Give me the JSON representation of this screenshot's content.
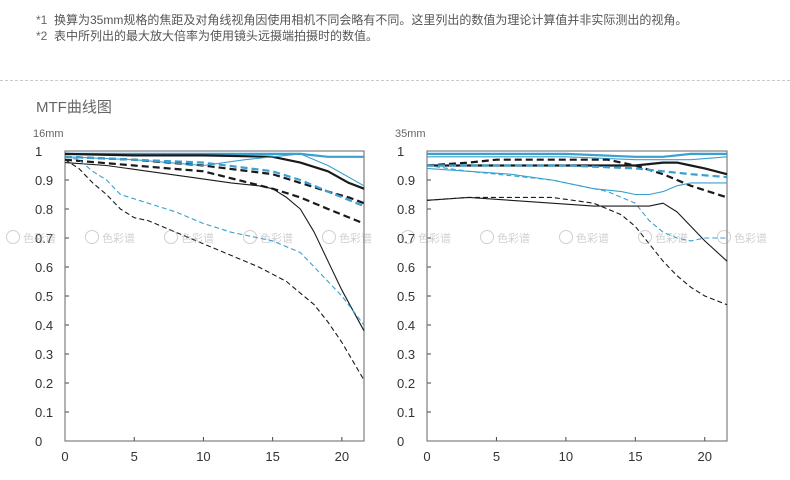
{
  "notes": [
    {
      "mark": "*1",
      "text": "换算为35mm规格的焦距及对角线视角因使用相机不同会略有不同。这里列出的数值为理论计算值并非实际测出的视角。"
    },
    {
      "mark": "*2",
      "text": "表中所列出的最大放大倍率为使用镜头远摄端拍摄时的数值。"
    }
  ],
  "section_title": "MTF曲线图",
  "watermark_text": "色彩谱",
  "colors": {
    "black": "#1a1a1a",
    "blue": "#3aa0d0",
    "axis": "#444444"
  },
  "chart_data": [
    {
      "type": "line",
      "title": "16mm",
      "xlim": [
        0,
        21.6
      ],
      "ylim": [
        0,
        1
      ],
      "xticks": [
        "0",
        "5",
        "10",
        "15",
        "20"
      ],
      "yticks": [
        "0",
        "0.1",
        "0.2",
        "0.3",
        "0.4",
        "0.5",
        "0.6",
        "0.7",
        "0.8",
        "0.9",
        "1"
      ],
      "series": [
        {
          "color": "blue",
          "dash": false,
          "width": 2,
          "x": [
            0,
            5,
            10,
            15,
            17,
            19,
            21.6
          ],
          "y": [
            0.99,
            0.99,
            0.99,
            0.99,
            0.99,
            0.98,
            0.98
          ]
        },
        {
          "color": "black",
          "dash": false,
          "width": 2,
          "x": [
            0,
            5,
            10,
            15,
            17,
            19,
            20.5,
            21.6
          ],
          "y": [
            0.99,
            0.985,
            0.985,
            0.98,
            0.96,
            0.93,
            0.89,
            0.87
          ]
        },
        {
          "color": "black",
          "dash": true,
          "width": 2,
          "x": [
            0,
            5,
            10,
            15,
            17,
            19,
            20.5,
            21.6
          ],
          "y": [
            0.98,
            0.97,
            0.95,
            0.92,
            0.89,
            0.86,
            0.84,
            0.82
          ]
        },
        {
          "color": "blue",
          "dash": false,
          "width": 1,
          "x": [
            0,
            5,
            10,
            13,
            15,
            17,
            19,
            21.6
          ],
          "y": [
            0.98,
            0.97,
            0.95,
            0.97,
            0.98,
            0.99,
            0.95,
            0.88
          ]
        },
        {
          "color": "blue",
          "dash": true,
          "width": 2,
          "x": [
            0,
            5,
            10,
            15,
            17,
            19,
            21.6
          ],
          "y": [
            0.98,
            0.97,
            0.96,
            0.93,
            0.9,
            0.86,
            0.81
          ]
        },
        {
          "color": "black",
          "dash": true,
          "width": 2,
          "x": [
            0,
            5,
            10,
            15,
            17,
            19,
            21.6
          ],
          "y": [
            0.97,
            0.95,
            0.93,
            0.87,
            0.84,
            0.8,
            0.75
          ]
        },
        {
          "color": "black",
          "dash": false,
          "width": 1,
          "x": [
            0,
            3,
            6,
            9,
            12,
            14,
            15,
            16,
            17,
            18,
            19,
            20,
            21.6
          ],
          "y": [
            0.96,
            0.95,
            0.93,
            0.91,
            0.89,
            0.88,
            0.87,
            0.84,
            0.8,
            0.72,
            0.62,
            0.52,
            0.38
          ]
        },
        {
          "color": "blue",
          "dash": true,
          "width": 1,
          "x": [
            0,
            1,
            2,
            3,
            4,
            6,
            8,
            10,
            12,
            14,
            15,
            16,
            17,
            18,
            19,
            20,
            21.6
          ],
          "y": [
            0.98,
            0.97,
            0.93,
            0.9,
            0.85,
            0.82,
            0.79,
            0.75,
            0.72,
            0.7,
            0.69,
            0.67,
            0.65,
            0.6,
            0.55,
            0.5,
            0.4
          ]
        },
        {
          "color": "black",
          "dash": true,
          "width": 1,
          "x": [
            0,
            1,
            2,
            3,
            4,
            5,
            6,
            8,
            10,
            12,
            14,
            16,
            17,
            18,
            19,
            20,
            21.6
          ],
          "y": [
            0.97,
            0.94,
            0.89,
            0.85,
            0.8,
            0.77,
            0.76,
            0.72,
            0.68,
            0.64,
            0.6,
            0.55,
            0.51,
            0.47,
            0.41,
            0.34,
            0.21
          ]
        }
      ]
    },
    {
      "type": "line",
      "title": "35mm",
      "xlim": [
        0,
        21.6
      ],
      "ylim": [
        0,
        1
      ],
      "xticks": [
        "0",
        "5",
        "10",
        "15",
        "20"
      ],
      "yticks": [
        "0",
        "0.1",
        "0.2",
        "0.3",
        "0.4",
        "0.5",
        "0.6",
        "0.7",
        "0.8",
        "0.9",
        "1"
      ],
      "series": [
        {
          "color": "blue",
          "dash": false,
          "width": 2,
          "x": [
            0,
            5,
            10,
            15,
            17,
            19,
            21.6
          ],
          "y": [
            0.99,
            0.99,
            0.99,
            0.98,
            0.98,
            0.99,
            0.99
          ]
        },
        {
          "color": "blue",
          "dash": false,
          "width": 1,
          "x": [
            0,
            5,
            10,
            15,
            17,
            19,
            21.6
          ],
          "y": [
            0.98,
            0.98,
            0.98,
            0.97,
            0.97,
            0.97,
            0.98
          ]
        },
        {
          "color": "black",
          "dash": false,
          "width": 2,
          "x": [
            0,
            5,
            10,
            15,
            17,
            18,
            19,
            20,
            21.6
          ],
          "y": [
            0.95,
            0.95,
            0.95,
            0.95,
            0.96,
            0.96,
            0.95,
            0.94,
            0.92
          ]
        },
        {
          "color": "black",
          "dash": true,
          "width": 2,
          "x": [
            0,
            3,
            5,
            7,
            9,
            10,
            13,
            15,
            17,
            19,
            21.6
          ],
          "y": [
            0.95,
            0.96,
            0.97,
            0.97,
            0.97,
            0.97,
            0.97,
            0.95,
            0.92,
            0.88,
            0.84
          ]
        },
        {
          "color": "blue",
          "dash": true,
          "width": 2,
          "x": [
            0,
            5,
            10,
            15,
            17,
            19,
            21.6
          ],
          "y": [
            0.95,
            0.95,
            0.95,
            0.94,
            0.93,
            0.92,
            0.91
          ]
        },
        {
          "color": "blue",
          "dash": false,
          "width": 1,
          "x": [
            0,
            3,
            6,
            9,
            12,
            14,
            15,
            16,
            17,
            18,
            19,
            20,
            21.6
          ],
          "y": [
            0.94,
            0.93,
            0.92,
            0.9,
            0.87,
            0.86,
            0.85,
            0.85,
            0.86,
            0.88,
            0.89,
            0.89,
            0.89
          ]
        },
        {
          "color": "blue",
          "dash": true,
          "width": 1,
          "x": [
            0,
            3,
            5,
            7,
            9,
            11,
            13,
            15,
            16,
            17,
            18,
            19,
            20,
            21.6
          ],
          "y": [
            0.95,
            0.93,
            0.92,
            0.91,
            0.9,
            0.88,
            0.86,
            0.82,
            0.76,
            0.72,
            0.7,
            0.69,
            0.7,
            0.7
          ]
        },
        {
          "color": "black",
          "dash": false,
          "width": 1,
          "x": [
            0,
            3,
            6,
            9,
            12,
            15,
            16,
            17,
            18,
            19,
            20,
            21.6
          ],
          "y": [
            0.83,
            0.84,
            0.83,
            0.82,
            0.81,
            0.81,
            0.81,
            0.82,
            0.79,
            0.74,
            0.69,
            0.62
          ]
        },
        {
          "color": "black",
          "dash": true,
          "width": 1,
          "x": [
            0,
            3,
            6,
            9,
            12,
            14,
            15,
            16,
            17,
            18,
            19,
            20,
            21.6
          ],
          "y": [
            0.83,
            0.84,
            0.84,
            0.84,
            0.82,
            0.78,
            0.74,
            0.68,
            0.62,
            0.57,
            0.53,
            0.5,
            0.47
          ]
        }
      ]
    }
  ]
}
